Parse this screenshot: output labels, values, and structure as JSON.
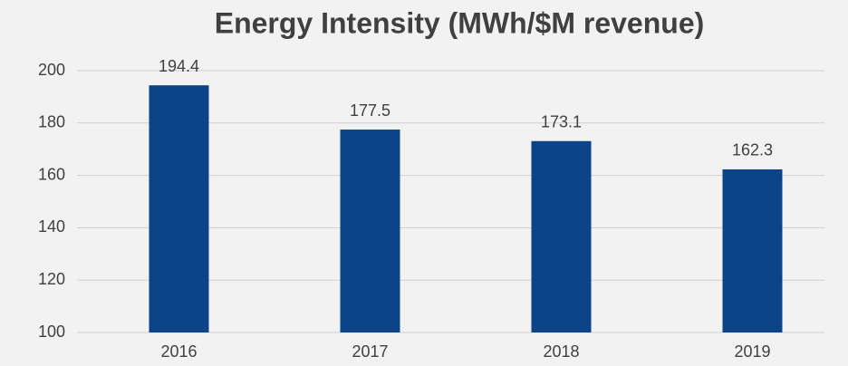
{
  "chart_data": {
    "type": "bar",
    "title": "Energy Intensity (MWh/$M revenue)",
    "categories": [
      "2016",
      "2017",
      "2018",
      "2019"
    ],
    "values": [
      194.4,
      177.5,
      173.1,
      162.3
    ],
    "color": "#0b4488",
    "ylim": [
      100,
      200
    ],
    "yticks": [
      100,
      120,
      140,
      160,
      180,
      200
    ],
    "grid": true,
    "data_labels": true
  }
}
